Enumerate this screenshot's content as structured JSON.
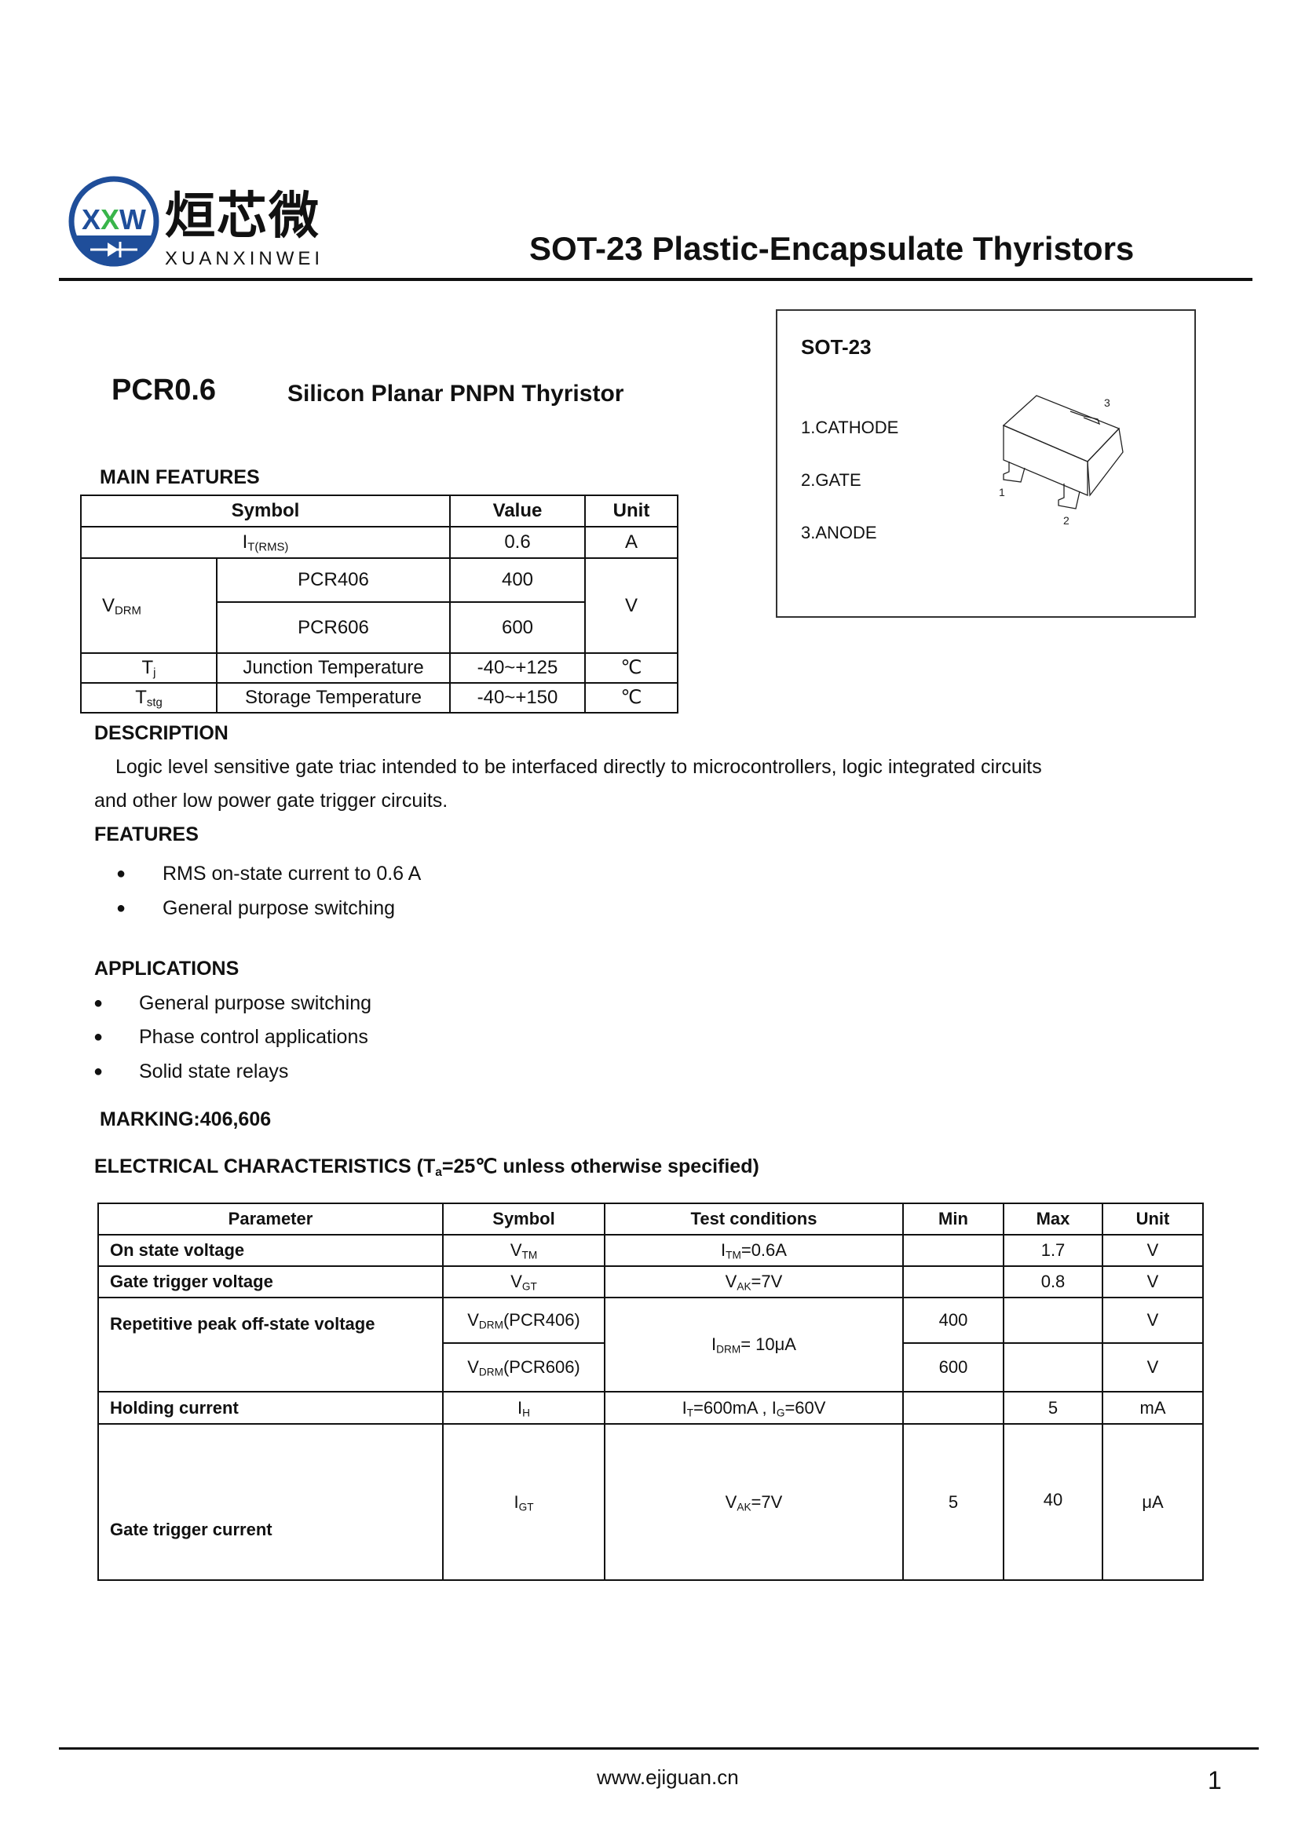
{
  "logo": {
    "mark": "XXW",
    "chinese": "烜芯微",
    "latin": "XUANXINWEI",
    "colors": {
      "blue": "#1f4e9a",
      "green": "#39b54a"
    }
  },
  "header": {
    "title": "SOT-23 Plastic-Encapsulate Thyristors"
  },
  "package": {
    "name": "SOT-23",
    "pins": [
      "1.CATHODE",
      "2.GATE",
      "3.ANODE"
    ],
    "pin_numbers": [
      "1",
      "2",
      "3"
    ]
  },
  "product": {
    "part": "PCR0.6",
    "subtitle": "Silicon Planar PNPN Thyristor"
  },
  "main_features": {
    "heading": "MAIN  FEATURES",
    "headers": [
      "Symbol",
      "Value",
      "Unit"
    ],
    "itrms": {
      "base": "I",
      "sub": "T(RMS)",
      "value": "0.6",
      "unit": "A"
    },
    "vdrm": {
      "base": "V",
      "sub": "DRM",
      "unit": "V",
      "rows": [
        {
          "part": "PCR406",
          "value": "400"
        },
        {
          "part": "PCR606",
          "value": "600"
        }
      ]
    },
    "tj": {
      "base": "T",
      "sub": "j",
      "desc": "Junction Temperature",
      "value": "-40~+125",
      "unit": "℃"
    },
    "tstg": {
      "base": "T",
      "sub": "stg",
      "desc": "Storage Temperature",
      "value": "-40~+150",
      "unit": "℃"
    }
  },
  "description": {
    "heading": "DESCRIPTION",
    "line1": "Logic level sensitive gate triac intended to be interfaced directly to microcontrollers, logic integrated circuits",
    "line2": "and other low power gate trigger circuits."
  },
  "features": {
    "heading": "FEATURES",
    "items": [
      "RMS on-state current to 0.6 A",
      "General purpose switching"
    ]
  },
  "applications": {
    "heading": "APPLICATIONS",
    "items": [
      "General purpose switching",
      "Phase control applications",
      "Solid state relays"
    ]
  },
  "marking": "MARKING:406,606",
  "electrical": {
    "heading_pre": "ELECTRICAL CHARACTERISTICS (T",
    "heading_sub": "a",
    "heading_post": "=25℃ unless otherwise specified)",
    "headers": [
      "Parameter",
      "Symbol",
      "Test  conditions",
      "Min",
      "Max",
      "Unit"
    ],
    "vtm": {
      "param": "On state voltage",
      "sym": "V",
      "sym_sub": "TM",
      "cond": "I",
      "cond_sub": "TM",
      "cond_post": "=0.6A",
      "min": "",
      "max": "1.7",
      "unit": "V"
    },
    "vgt": {
      "param": "Gate trigger voltage",
      "sym": "V",
      "sym_sub": "GT",
      "cond": "V",
      "cond_sub": "AK",
      "cond_post": "=7V",
      "min": "",
      "max": "0.8",
      "unit": "V"
    },
    "vdrm": {
      "param": "Repetitive peak off-state voltage",
      "cond": "I",
      "cond_sub": "DRM",
      "cond_post": "= 10μA",
      "rows": [
        {
          "sym": "V",
          "sym_sub": "DRM",
          "sym_post": "(PCR406)",
          "min": "400",
          "max": "",
          "unit": "V"
        },
        {
          "sym": "V",
          "sym_sub": "DRM",
          "sym_post": "(PCR606)",
          "min": "600",
          "max": "",
          "unit": "V"
        }
      ]
    },
    "ih": {
      "param": "Holding current",
      "sym": "I",
      "sym_sub": "H",
      "c1": "I",
      "c1_sub": "T",
      "c1_post": "=600mA , ",
      "c2": "I",
      "c2_sub": "G",
      "c2_post": "=60V",
      "min": "",
      "max": "5",
      "unit": "mA"
    },
    "igt": {
      "param": "Gate trigger current",
      "sym": "I",
      "sym_sub": "GT",
      "cond": "V",
      "cond_sub": "AK",
      "cond_post": "=7V",
      "min": "5",
      "max": "40",
      "unit": "μA"
    }
  },
  "footer": {
    "url": "www.ejiguan.cn",
    "page": "1"
  }
}
